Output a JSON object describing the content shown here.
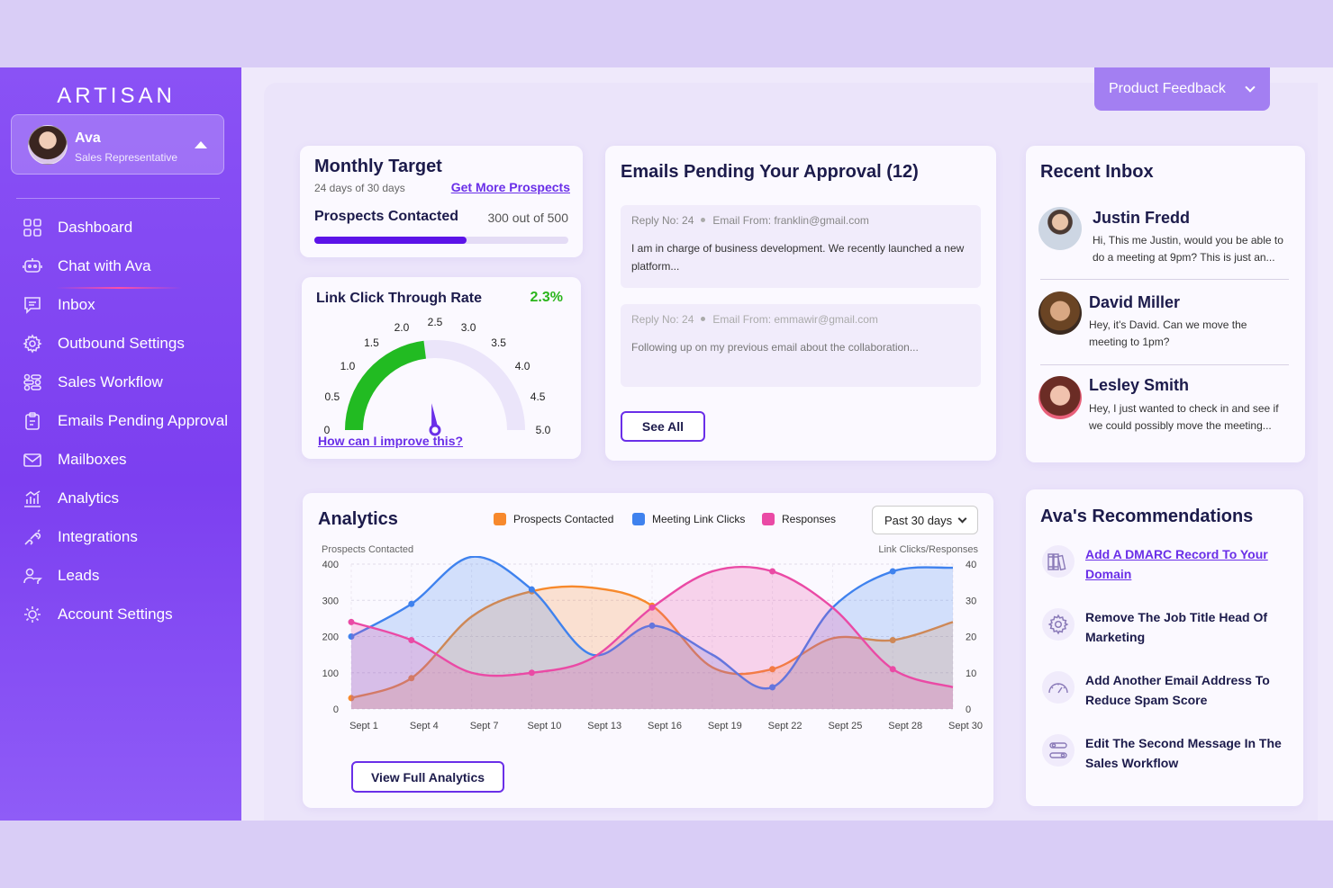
{
  "brand": "ARTISAN",
  "user": {
    "name": "Ava",
    "role": "Sales Representative"
  },
  "nav": [
    {
      "label": "Dashboard",
      "icon": "grid-icon"
    },
    {
      "label": "Chat with Ava",
      "icon": "chat-bot-icon"
    },
    {
      "label": "Inbox",
      "icon": "inbox-icon"
    },
    {
      "label": "Outbound Settings",
      "icon": "gear-icon"
    },
    {
      "label": "Sales Workflow",
      "icon": "workflow-icon"
    },
    {
      "label": "Emails Pending Approval",
      "icon": "clipboard-icon"
    },
    {
      "label": "Mailboxes",
      "icon": "mail-icon"
    },
    {
      "label": "Analytics",
      "icon": "bar-chart-icon"
    },
    {
      "label": "Integrations",
      "icon": "puzzle-icon"
    },
    {
      "label": "Leads",
      "icon": "user-filter-icon"
    },
    {
      "label": "Account Settings",
      "icon": "user-gear-icon"
    }
  ],
  "product_feedback": "Product Feedback",
  "monthly_target": {
    "title": "Monthly Target",
    "subtitle": "24 days of 30 days",
    "link": "Get More Prospects",
    "label": "Prospects Contacted",
    "count_text": "300 out of 500",
    "progress": 0.6
  },
  "ctr": {
    "title": "Link Click Through Rate",
    "value_text": "2.3%",
    "value": 2.3,
    "min": 0,
    "max": 5,
    "ticks": [
      "0",
      "0.5",
      "1.0",
      "1.5",
      "2.0",
      "2.5",
      "3.0",
      "3.5",
      "4.0",
      "4.5",
      "5.0"
    ],
    "link": "How can I improve this?",
    "colors": {
      "fill": "#22bb22",
      "track": "#ebe5fa",
      "needle": "#6a2fe8"
    }
  },
  "emails_pending": {
    "title": "Emails Pending Your Approval (12)",
    "items": [
      {
        "reply": "Reply No: 24",
        "from": "Email From: franklin@gmail.com",
        "body": "I am in charge of business development. We recently launched a new platform..."
      },
      {
        "reply": "Reply No: 24",
        "from": "Email From: emmawir@gmail.com",
        "body": "Following up on my previous email about the collaboration..."
      }
    ],
    "see_all": "See All"
  },
  "recent_inbox": {
    "title": "Recent Inbox",
    "items": [
      {
        "name": "Justin Fredd",
        "text": "Hi, This me Justin, would you be able to do a meeting at 9pm? This is just an..."
      },
      {
        "name": "David Miller",
        "text": "Hey, it's David. Can we move the meeting to 1pm?"
      },
      {
        "name": "Lesley Smith",
        "text": "Hey, I just wanted to check in and see if we could possibly move the meeting..."
      }
    ]
  },
  "analytics": {
    "title": "Analytics",
    "range": "Past 30 days",
    "left_axis_title": "Prospects Contacted",
    "right_axis_title": "Link Clicks/Responses",
    "view_full": "View Full Analytics"
  },
  "chart_data": {
    "type": "area",
    "x": [
      "Sept 1",
      "Sept 4",
      "Sept 7",
      "Sept 10",
      "Sept 13",
      "Sept 16",
      "Sept 19",
      "Sept 22",
      "Sept 25",
      "Sept 28",
      "Sept 30"
    ],
    "ylim": [
      0,
      400
    ],
    "yticks": [
      0,
      100,
      200,
      300,
      400
    ],
    "y2lim": [
      0,
      40
    ],
    "y2ticks": [
      0,
      10,
      20,
      30,
      40
    ],
    "grid": true,
    "legend": "top",
    "series": [
      {
        "name": "Prospects Contacted",
        "axis": "left",
        "color": "#f7892c",
        "values": [
          30,
          85,
          255,
          325,
          335,
          285,
          115,
          110,
          195,
          190,
          240
        ]
      },
      {
        "name": "Meeting Link Clicks",
        "axis": "right",
        "color": "#3f82ee",
        "values": [
          20,
          29,
          42,
          33,
          15,
          23,
          15,
          6,
          28,
          38,
          39
        ]
      },
      {
        "name": "Responses",
        "axis": "right",
        "color": "#ea4aa5",
        "values": [
          24,
          19,
          10,
          10,
          14,
          28,
          38,
          38,
          28,
          11,
          6
        ]
      }
    ]
  },
  "recommendations": {
    "title": "Ava's Recommendations",
    "items": [
      {
        "text": "Add A DMARC Record To Your Domain",
        "icon": "books-icon",
        "link": true
      },
      {
        "text": "Remove The Job Title Head Of Marketing",
        "icon": "gear-icon",
        "link": false
      },
      {
        "text": "Add Another Email Address To Reduce Spam Score",
        "icon": "speedometer-icon",
        "link": false
      },
      {
        "text": "Edit The Second Message In The Sales Workflow",
        "icon": "sliders-icon",
        "link": false
      }
    ]
  }
}
